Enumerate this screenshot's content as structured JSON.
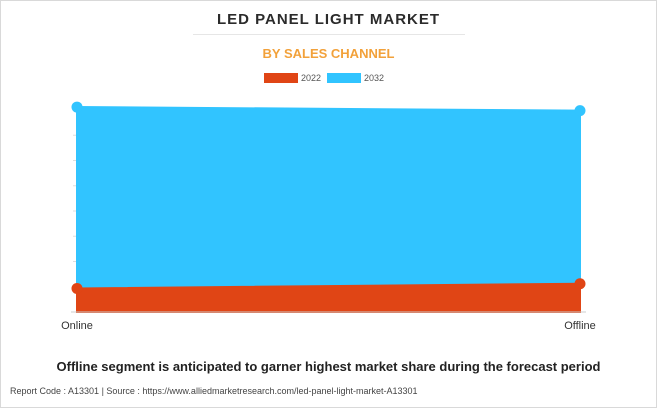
{
  "header": {
    "title": "LED PANEL LIGHT MARKET",
    "subtitle": "BY SALES CHANNEL"
  },
  "legend": [
    {
      "label": "2022",
      "color": "#e04515"
    },
    {
      "label": "2032",
      "color": "#31c4ff"
    }
  ],
  "chart_data": {
    "type": "area",
    "categories": [
      "Online",
      "Offline"
    ],
    "series": [
      {
        "name": "2022",
        "color": "#e04515",
        "values": [
          10,
          12
        ]
      },
      {
        "name": "2032",
        "color": "#31c4ff",
        "values": [
          87,
          85.5
        ]
      }
    ],
    "ylim": [
      0,
      90
    ],
    "stacked": false,
    "grid": false
  },
  "footer": {
    "note": "Offline segment is anticipated to garner highest market share during the forecast period",
    "report_code": "Report Code : A13301  |  Source : https://www.alliedmarketresearch.com/led-panel-light-market-A13301"
  }
}
